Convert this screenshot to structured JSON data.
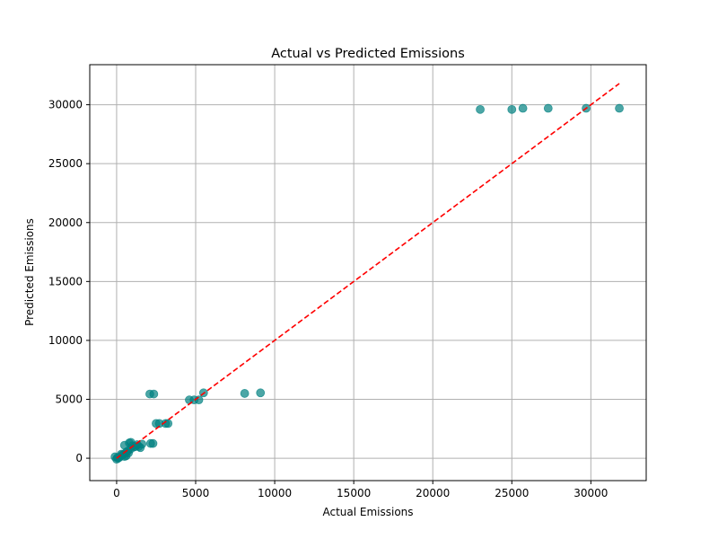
{
  "chart_data": {
    "type": "scatter",
    "title": "Actual vs Predicted Emissions",
    "xlabel": "Actual Emissions",
    "ylabel": "Predicted Emissions",
    "xlim": [
      -1700,
      33500
    ],
    "ylim": [
      -1900,
      33400
    ],
    "xticks": [
      0,
      5000,
      10000,
      15000,
      20000,
      25000,
      30000
    ],
    "yticks": [
      0,
      5000,
      10000,
      15000,
      20000,
      25000,
      30000
    ],
    "xtick_labels": [
      "0",
      "5000",
      "10000",
      "15000",
      "20000",
      "25000",
      "30000"
    ],
    "ytick_labels": [
      "0",
      "5000",
      "10000",
      "15000",
      "20000",
      "25000",
      "30000"
    ],
    "grid": true,
    "marker_color": "#008080",
    "marker_alpha": 0.7,
    "reference_line": {
      "style": "dashed",
      "color": "#ff0000",
      "from": [
        0,
        0
      ],
      "to": [
        31800,
        31800
      ]
    },
    "points": [
      {
        "x": 23000,
        "y": 29600
      },
      {
        "x": 25000,
        "y": 29600
      },
      {
        "x": 25700,
        "y": 29700
      },
      {
        "x": 27300,
        "y": 29700
      },
      {
        "x": 29700,
        "y": 29700
      },
      {
        "x": 31800,
        "y": 29700
      },
      {
        "x": 8100,
        "y": 5500
      },
      {
        "x": 9100,
        "y": 5550
      },
      {
        "x": 5500,
        "y": 5550
      },
      {
        "x": 2100,
        "y": 5450
      },
      {
        "x": 2350,
        "y": 5450
      },
      {
        "x": 4600,
        "y": 4950
      },
      {
        "x": 4900,
        "y": 4950
      },
      {
        "x": 5200,
        "y": 4950
      },
      {
        "x": 2500,
        "y": 2950
      },
      {
        "x": 2700,
        "y": 2950
      },
      {
        "x": 3100,
        "y": 2950
      },
      {
        "x": 3250,
        "y": 2950
      },
      {
        "x": 2150,
        "y": 1250
      },
      {
        "x": 2300,
        "y": 1250
      },
      {
        "x": 1600,
        "y": 1200
      },
      {
        "x": 1300,
        "y": 1150
      },
      {
        "x": 1400,
        "y": 1000
      },
      {
        "x": 1500,
        "y": 900
      },
      {
        "x": 900,
        "y": 1350
      },
      {
        "x": 800,
        "y": 1300
      },
      {
        "x": 1000,
        "y": 1050
      },
      {
        "x": 1100,
        "y": 950
      },
      {
        "x": 900,
        "y": 800
      },
      {
        "x": 700,
        "y": 600
      },
      {
        "x": 600,
        "y": 500
      },
      {
        "x": 500,
        "y": 1100
      },
      {
        "x": 400,
        "y": 300
      },
      {
        "x": 350,
        "y": 250
      },
      {
        "x": 600,
        "y": 200
      },
      {
        "x": 500,
        "y": 150
      },
      {
        "x": 200,
        "y": 100
      },
      {
        "x": 100,
        "y": 0
      },
      {
        "x": 0,
        "y": -80
      },
      {
        "x": -100,
        "y": 120
      },
      {
        "x": 50,
        "y": 50
      },
      {
        "x": 750,
        "y": 450
      },
      {
        "x": 1200,
        "y": 1000
      },
      {
        "x": 300,
        "y": 350
      }
    ]
  }
}
